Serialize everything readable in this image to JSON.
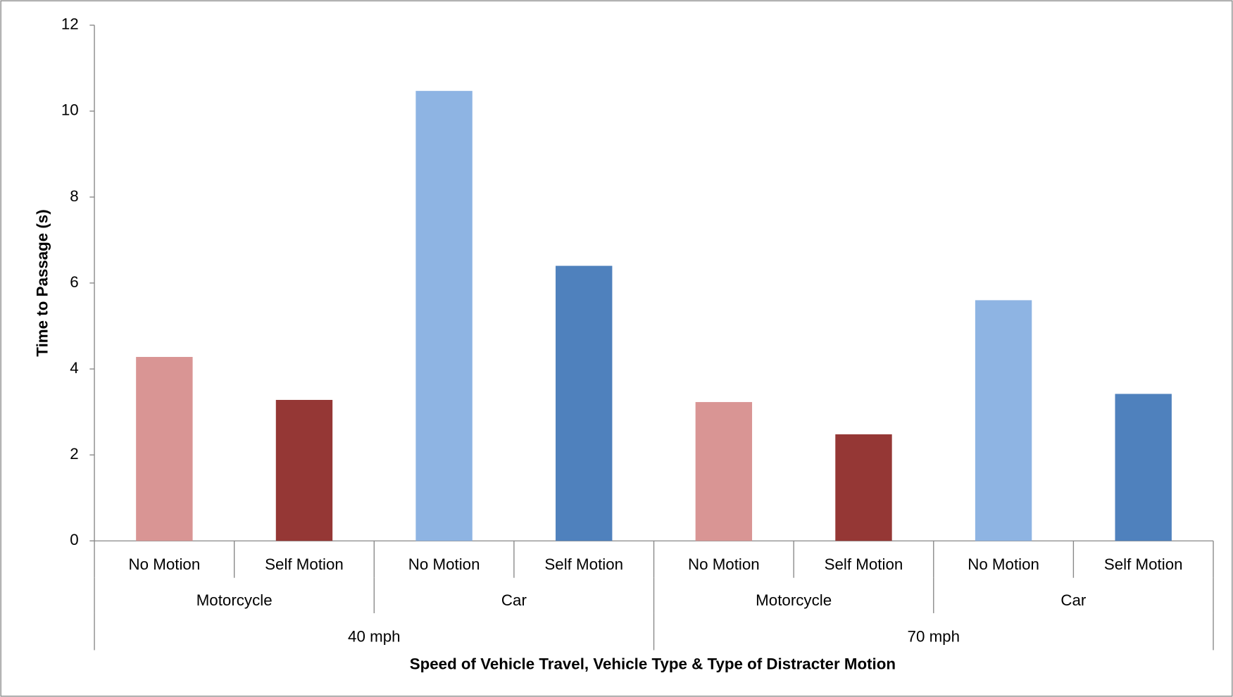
{
  "chart_data": {
    "type": "bar",
    "y_label": "Time to Passage (s)",
    "x_label": "Speed of Vehicle Travel, Vehicle Type & Type of Distracter Motion",
    "categories": [
      "No Motion",
      "Self Motion",
      "No Motion",
      "Self Motion",
      "No Motion",
      "Self Motion",
      "No Motion",
      "Self Motion"
    ],
    "vehicle_types": [
      "Motorcycle",
      "Car",
      "Motorcycle",
      "Car"
    ],
    "speeds": [
      "40 mph",
      "70 mph"
    ],
    "values": [
      4.28,
      3.28,
      10.47,
      6.4,
      3.23,
      2.48,
      5.6,
      3.42
    ],
    "colors": [
      "#d99594",
      "#953735",
      "#8eb4e3",
      "#4f81bd",
      "#d99594",
      "#953735",
      "#8eb4e3",
      "#4f81bd"
    ],
    "ylim": [
      0,
      12
    ],
    "yticks": [
      0,
      2,
      4,
      6,
      8,
      10,
      12
    ],
    "grid": false
  }
}
